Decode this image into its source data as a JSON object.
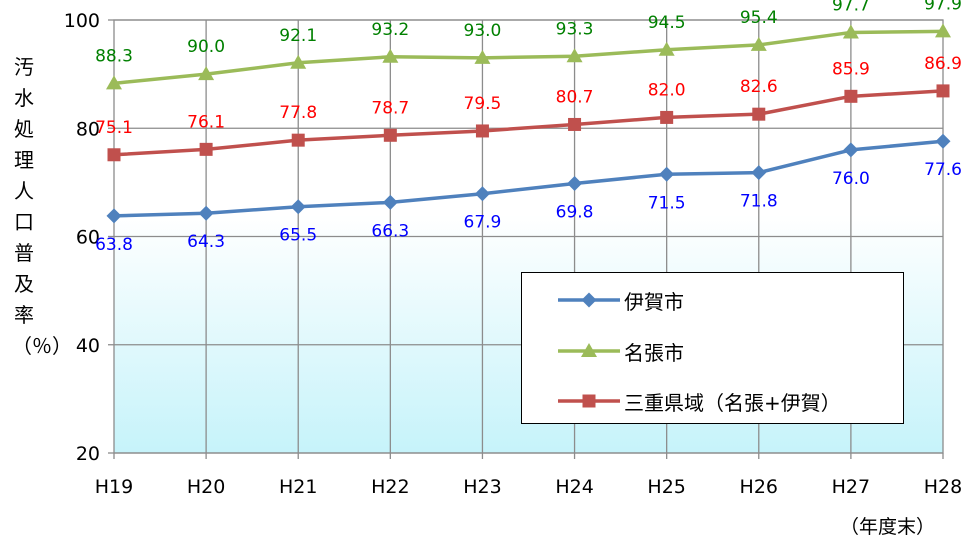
{
  "chart_data": {
    "type": "line",
    "categories": [
      "H19",
      "H20",
      "H21",
      "H22",
      "H23",
      "H24",
      "H25",
      "H26",
      "H27",
      "H28"
    ],
    "series": [
      {
        "name": "伊賀市",
        "values": [
          63.8,
          64.3,
          65.5,
          66.3,
          67.9,
          69.8,
          71.5,
          71.8,
          76.0,
          77.6
        ],
        "labels": [
          "63.8",
          "64.3",
          "65.5",
          "66.3",
          "67.9",
          "69.8",
          "71.5",
          "71.8",
          "76.0",
          "77.6"
        ],
        "color": "#4f81bd",
        "label_color": "#0000ff",
        "marker": "diamond"
      },
      {
        "name": "名張市",
        "values": [
          88.3,
          90.0,
          92.1,
          93.2,
          93.0,
          93.3,
          94.5,
          95.4,
          97.7,
          97.9
        ],
        "labels": [
          "88.3",
          "90.0",
          "92.1",
          "93.2",
          "93.0",
          "93.3",
          "94.5",
          "95.4",
          "97.7",
          "97.9"
        ],
        "color": "#9bbb59",
        "label_color": "#008000",
        "marker": "triangle"
      },
      {
        "name": "三重県域（名張+伊賀）",
        "values": [
          75.1,
          76.1,
          77.8,
          78.7,
          79.5,
          80.7,
          82.0,
          82.6,
          85.9,
          86.9
        ],
        "labels": [
          "75.1",
          "76.1",
          "77.8",
          "78.7",
          "79.5",
          "80.7",
          "82.0",
          "82.6",
          "85.9",
          "86.9"
        ],
        "color": "#c0504d",
        "label_color": "#ff0000",
        "marker": "square"
      }
    ],
    "ylim": [
      20,
      100
    ],
    "yticks": [
      "20",
      "40",
      "60",
      "80",
      "100"
    ],
    "ylabel": "汚水処理人口普及率（％）",
    "xunit": "（年度末）",
    "grid": true,
    "legend_position": "bottom-right",
    "plot_background": "gradient white to light cyan"
  }
}
